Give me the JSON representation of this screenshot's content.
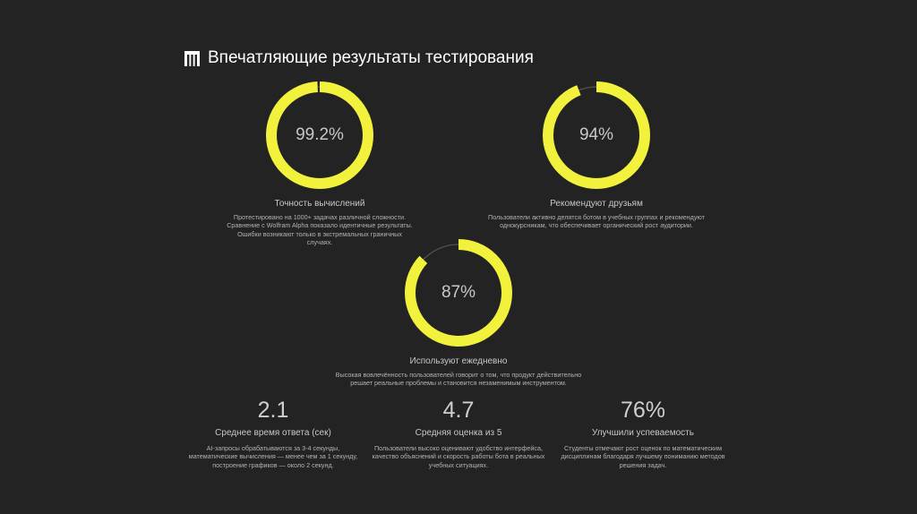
{
  "header": {
    "logo_icon": "brand-logo-icon",
    "title": "Впечатляющие результаты тестирования"
  },
  "colors": {
    "background": "#232323",
    "accent": "#f2f23c",
    "ring_track": "#555555"
  },
  "rings": [
    {
      "value_text": "99.2%",
      "fraction": 0.992,
      "label": "Точность вычислений",
      "description": "Протестировано на 1000+ задачах различной сложности. Сравнение с Wolfram Alpha показало идентичные результаты. Ошибки возникают только в экстремальных граничных случаях."
    },
    {
      "value_text": "94%",
      "fraction": 0.94,
      "label": "Рекомендуют друзьям",
      "description": "Пользователи активно делятся ботом в учебных группах и рекомендуют однокурсникам, что обеспечивает органический рост аудитории."
    },
    {
      "value_text": "87%",
      "fraction": 0.87,
      "label": "Используют ежедневно",
      "description": "Высокая вовлечённость пользователей говорит о том, что продукт действительно решает реальные проблемы и становится незаменимым инструментом."
    }
  ],
  "stats": [
    {
      "value": "2.1",
      "label": "Среднее время ответа (сек)",
      "description": "AI-запросы обрабатываются за 3-4 секунды, математические вычисления — менее чем за 1 секунду, построение графиков — около 2 секунд."
    },
    {
      "value": "4.7",
      "label": "Средняя оценка из 5",
      "description": "Пользователи высоко оценивают удобство интерфейса, качество объяснений и скорость работы бота в реальных учебных ситуациях."
    },
    {
      "value": "76%",
      "label": "Улучшили успеваемость",
      "description": "Студенты отмечают рост оценок по математическим дисциплинам благодаря лучшему пониманию методов решения задач."
    }
  ]
}
